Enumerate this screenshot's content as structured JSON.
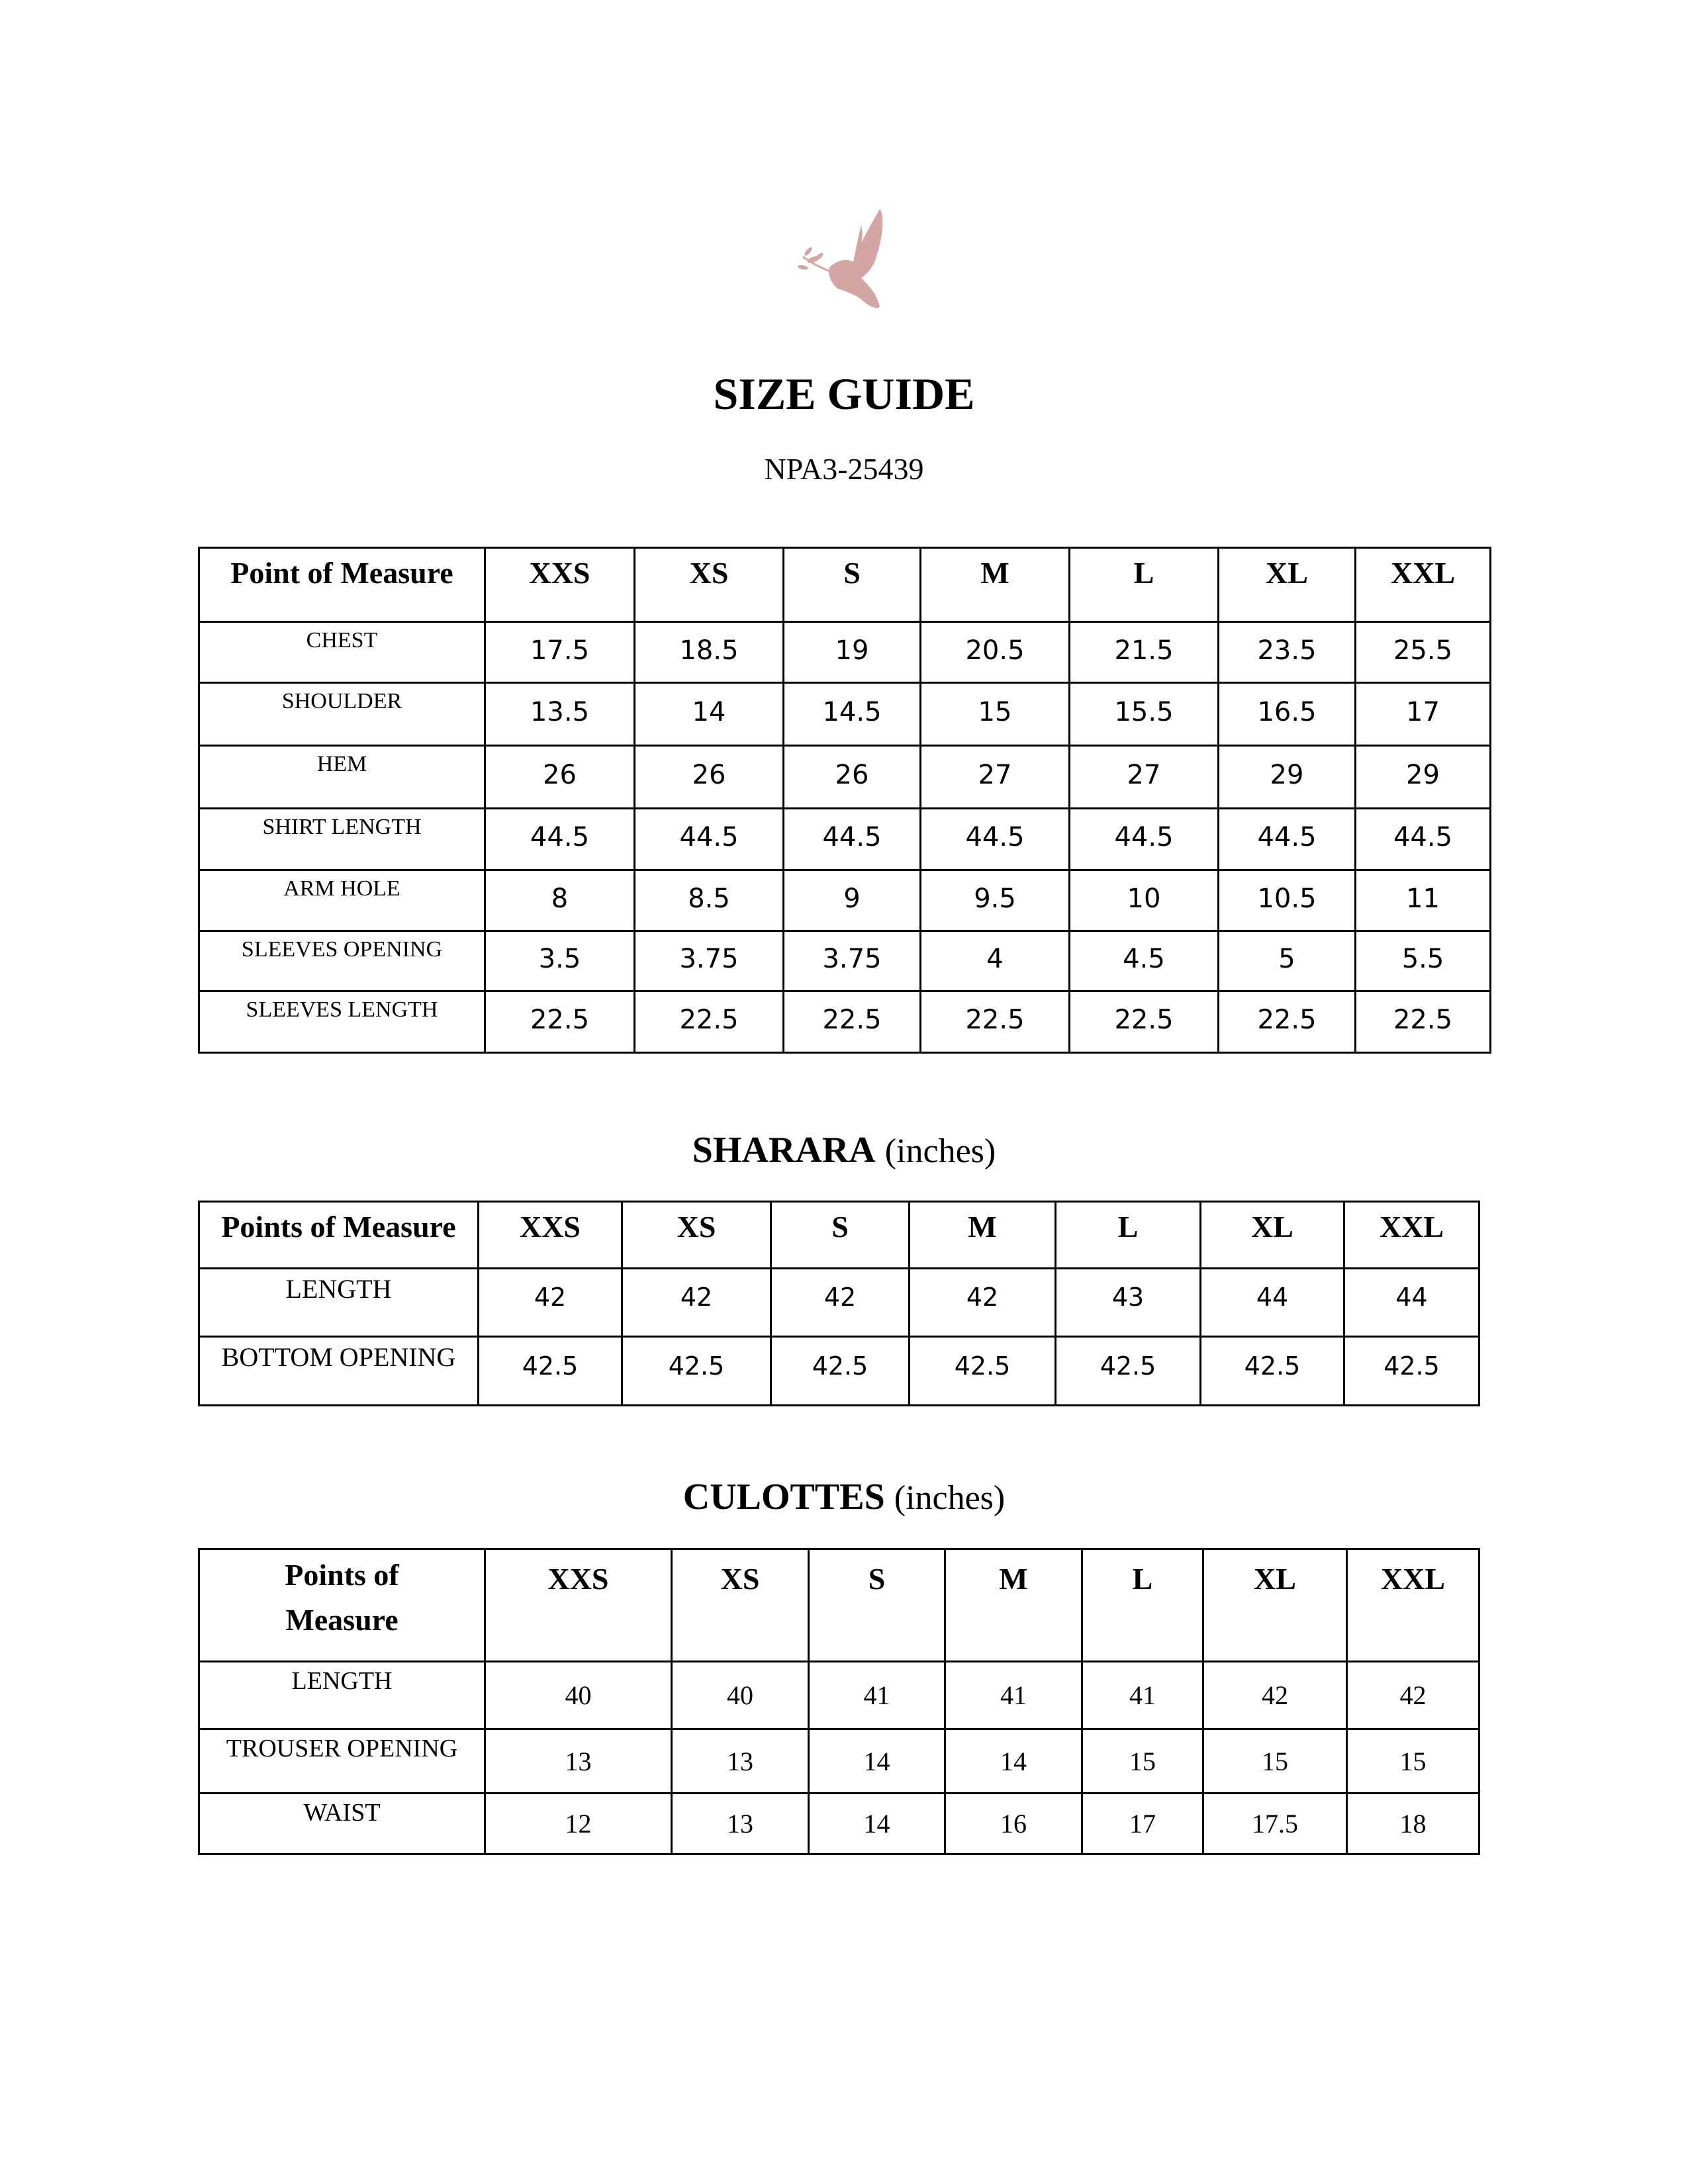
{
  "logo": {
    "name": "dove-with-olive-branch-logo",
    "color": "#d4a5a5"
  },
  "title": "SIZE GUIDE",
  "code": "NPA3-25439",
  "sizes": [
    "XXS",
    "XS",
    "S",
    "M",
    "L",
    "XL",
    "XXL"
  ],
  "shirt": {
    "header_label": "Point of Measure",
    "rows": [
      {
        "label": "CHEST",
        "values": [
          "17.5",
          "18.5",
          "19",
          "20.5",
          "21.5",
          "23.5",
          "25.5"
        ]
      },
      {
        "label": "SHOULDER",
        "values": [
          "13.5",
          "14",
          "14.5",
          "15",
          "15.5",
          "16.5",
          "17"
        ]
      },
      {
        "label": "HEM",
        "values": [
          "26",
          "26",
          "26",
          "27",
          "27",
          "29",
          "29"
        ]
      },
      {
        "label": "SHIRT LENGTH",
        "values": [
          "44.5",
          "44.5",
          "44.5",
          "44.5",
          "44.5",
          "44.5",
          "44.5"
        ]
      },
      {
        "label": "ARM HOLE",
        "values": [
          "8",
          "8.5",
          "9",
          "9.5",
          "10",
          "10.5",
          "11"
        ]
      },
      {
        "label": "SLEEVES OPENING",
        "values": [
          "3.5",
          "3.75",
          "3.75",
          "4",
          "4.5",
          "5",
          "5.5"
        ]
      },
      {
        "label": "SLEEVES LENGTH",
        "values": [
          "22.5",
          "22.5",
          "22.5",
          "22.5",
          "22.5",
          "22.5",
          "22.5"
        ]
      }
    ]
  },
  "sharara": {
    "title": "SHARARA",
    "unit": "(inches)",
    "header_label": "Points of Measure",
    "rows": [
      {
        "label": "LENGTH",
        "values": [
          "42",
          "42",
          "42",
          "42",
          "43",
          "44",
          "44"
        ]
      },
      {
        "label": "BOTTOM OPENING",
        "values": [
          "42.5",
          "42.5",
          "42.5",
          "42.5",
          "42.5",
          "42.5",
          "42.5"
        ]
      }
    ]
  },
  "culottes": {
    "title": "CULOTTES",
    "unit": "(inches)",
    "header_label": "Points of Measure",
    "rows": [
      {
        "label": "LENGTH",
        "values": [
          "40",
          "40",
          "41",
          "41",
          "41",
          "42",
          "42"
        ]
      },
      {
        "label": "TROUSER OPENING",
        "values": [
          "13",
          "13",
          "14",
          "14",
          "15",
          "15",
          "15"
        ]
      },
      {
        "label": "WAIST",
        "values": [
          "12",
          "13",
          "14",
          "16",
          "17",
          "17.5",
          "18"
        ]
      }
    ]
  }
}
